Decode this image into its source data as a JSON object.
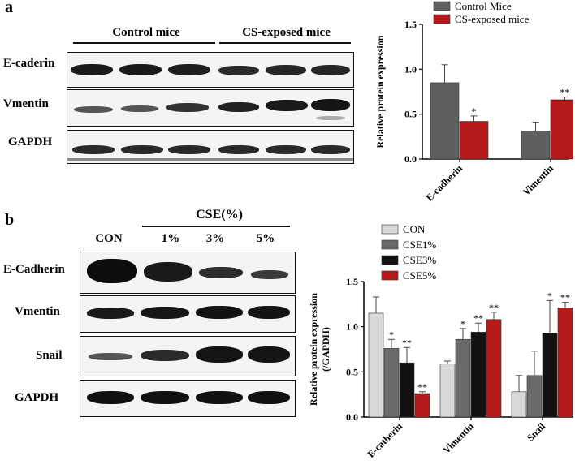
{
  "panel_a": {
    "letter": "a",
    "groups": [
      "Control mice",
      "CS-exposed mice"
    ],
    "rows": [
      "E-caderin",
      "Vmentin",
      "GAPDH"
    ]
  },
  "panel_b": {
    "letter": "b",
    "header": "CSE(%)",
    "lanes": [
      "CON",
      "1%",
      "3%",
      "5%"
    ],
    "rows": [
      "E-Cadherin",
      "Vmentin",
      "Snail",
      "GAPDH"
    ]
  },
  "chart_data": [
    {
      "type": "bar",
      "categories": [
        "E-cadherin",
        "Vimentin"
      ],
      "series": [
        {
          "name": "Control Mice",
          "color": "#5f5f5f",
          "values": [
            0.85,
            0.31
          ],
          "errors": [
            0.2,
            0.1
          ]
        },
        {
          "name": "CS-exposed mice",
          "color": "#b51a1a",
          "values": [
            0.42,
            0.66
          ],
          "errors": [
            0.06,
            0.03
          ]
        }
      ],
      "significance": [
        [
          "",
          "*"
        ],
        [
          "",
          "**"
        ]
      ],
      "ylabel": "Relative  protein expression",
      "ylim": [
        0,
        1.5
      ],
      "yticks": [
        "0.0",
        "0.5",
        "1.0",
        "1.5"
      ],
      "legend": "top"
    },
    {
      "type": "bar",
      "categories": [
        "E-catherin",
        "Vimentin",
        "Snail"
      ],
      "series": [
        {
          "name": "CON",
          "color": "#d9d9d9",
          "values": [
            1.15,
            0.59,
            0.28
          ],
          "errors": [
            0.18,
            0.03,
            0.18
          ]
        },
        {
          "name": "CSE1%",
          "color": "#6a6a6a",
          "values": [
            0.76,
            0.86,
            0.46
          ],
          "errors": [
            0.1,
            0.12,
            0.27
          ]
        },
        {
          "name": "CSE3%",
          "color": "#111111",
          "values": [
            0.6,
            0.94,
            0.93
          ],
          "errors": [
            0.17,
            0.1,
            0.36
          ]
        },
        {
          "name": "CSE5%",
          "color": "#b51a1a",
          "values": [
            0.26,
            1.08,
            1.21
          ],
          "errors": [
            0.02,
            0.08,
            0.06
          ]
        }
      ],
      "significance": [
        [
          "",
          "*",
          "**",
          "**"
        ],
        [
          "",
          "*",
          "**",
          "**"
        ],
        [
          "",
          "",
          "*",
          "**"
        ]
      ],
      "ylabel": "Relative  protein expression",
      "ylabel2": "(/GAPDH)",
      "ylim": [
        0,
        1.5
      ],
      "yticks": [
        "0.0",
        "0.5",
        "1.0",
        "1.5"
      ],
      "legend": "top-left"
    }
  ]
}
